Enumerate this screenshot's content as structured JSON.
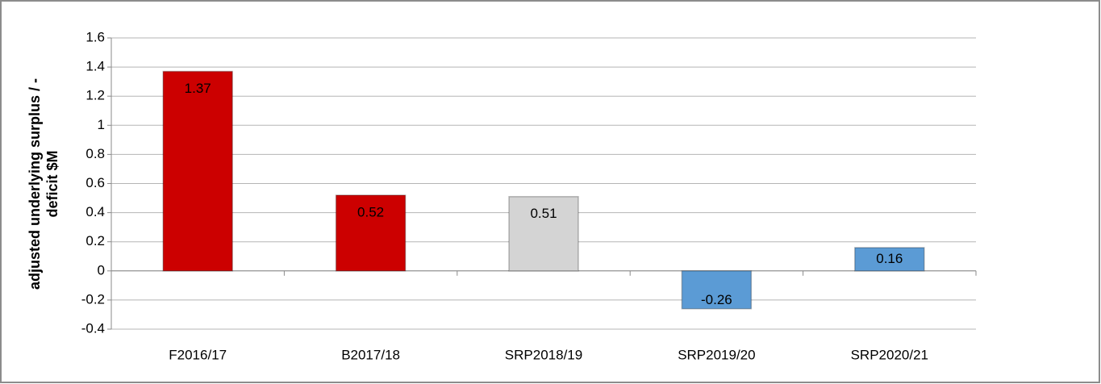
{
  "chart_data": {
    "type": "bar",
    "ylabel": [
      "adjusted underlying surplus / -",
      "deficit $M"
    ],
    "categories": [
      "F2016/17",
      "B2017/18",
      "SRP2018/19",
      "SRP2019/20",
      "SRP2020/21"
    ],
    "values": [
      1.37,
      0.52,
      0.51,
      -0.26,
      0.16
    ],
    "colors": [
      "#cc0000",
      "#cc0000",
      "#d4d4d4",
      "#5b9bd5",
      "#5b9bd5"
    ],
    "ylim": [
      -0.4,
      1.6
    ],
    "yticks": [
      -0.4,
      -0.2,
      0,
      0.2,
      0.4,
      0.6,
      0.8,
      1,
      1.2,
      1.4,
      1.6
    ],
    "grid": true
  }
}
